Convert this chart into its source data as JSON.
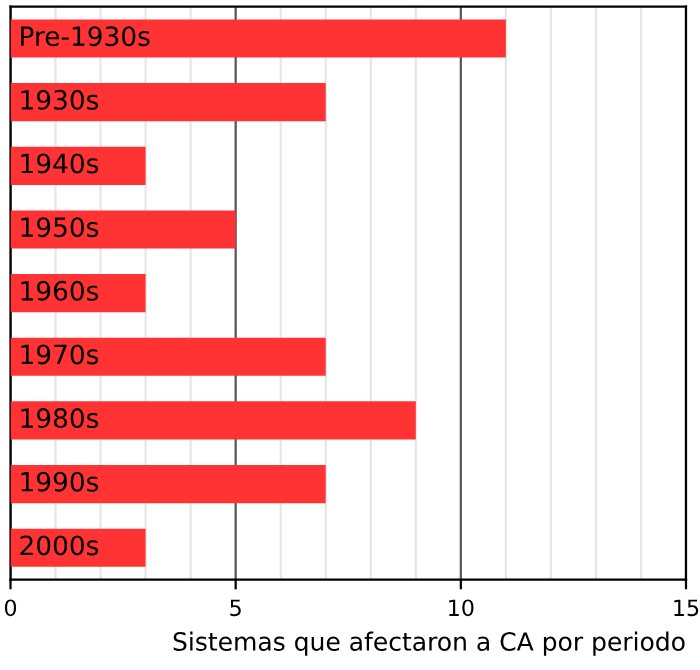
{
  "chart_data": {
    "type": "bar",
    "orientation": "horizontal",
    "xlabel": "Sistemas que afectaron a CA por periodo",
    "categories": [
      "Pre-1930s",
      "1930s",
      "1940s",
      "1950s",
      "1960s",
      "1970s",
      "1980s",
      "1990s",
      "2000s"
    ],
    "values": [
      11,
      7,
      3,
      5,
      3,
      7,
      9,
      7,
      3
    ],
    "color": "#ff3333",
    "xlim": [
      0,
      15
    ],
    "xticks": [
      0,
      5,
      10,
      15
    ],
    "grid": "x"
  }
}
